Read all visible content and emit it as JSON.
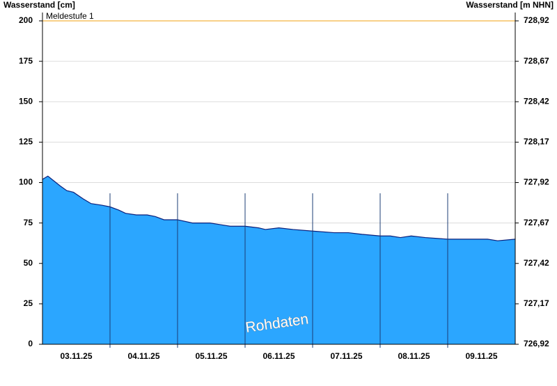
{
  "chart_data": {
    "type": "area",
    "y_label": "Wasserstand [cm]",
    "y2_label": "Wasserstand [m NHN]",
    "watermark": "Rohdaten",
    "thresholds": [
      {
        "label": "Meldestufe 1",
        "value": 200,
        "color": "#f5c060"
      }
    ],
    "xlim": [
      0,
      7
    ],
    "xticks": [
      {
        "value": 0.5,
        "label": "03.11.25"
      },
      {
        "value": 1.5,
        "label": "04.11.25"
      },
      {
        "value": 2.5,
        "label": "05.11.25"
      },
      {
        "value": 3.5,
        "label": "06.11.25"
      },
      {
        "value": 4.5,
        "label": "07.11.25"
      },
      {
        "value": 5.5,
        "label": "08.11.25"
      },
      {
        "value": 6.5,
        "label": "09.11.25"
      }
    ],
    "ylim": [
      0,
      200
    ],
    "yticks": [
      0,
      25,
      50,
      75,
      100,
      125,
      150,
      175,
      200
    ],
    "y2lim": [
      726.92,
      728.92
    ],
    "y2ticks": [
      {
        "value": 726.92,
        "label": "726,92"
      },
      {
        "value": 727.17,
        "label": "727,17"
      },
      {
        "value": 727.42,
        "label": "727,42"
      },
      {
        "value": 727.67,
        "label": "727,67"
      },
      {
        "value": 727.92,
        "label": "727,92"
      },
      {
        "value": 728.17,
        "label": "728,17"
      },
      {
        "value": 728.42,
        "label": "728,42"
      },
      {
        "value": 728.67,
        "label": "728,67"
      },
      {
        "value": 728.92,
        "label": "728,92"
      }
    ],
    "grid": true,
    "series": [
      {
        "color": "#2ba6ff",
        "line_color": "#0a1f7a",
        "x": [
          0,
          0.08,
          0.26,
          0.36,
          0.46,
          0.6,
          0.72,
          0.88,
          1.0,
          1.13,
          1.23,
          1.39,
          1.55,
          1.67,
          1.8,
          2.0,
          2.22,
          2.48,
          2.63,
          2.78,
          3.0,
          3.2,
          3.3,
          3.5,
          3.71,
          4.0,
          4.32,
          4.53,
          4.73,
          5.0,
          5.15,
          5.3,
          5.46,
          5.67,
          6.0,
          6.28,
          6.59,
          6.74,
          7.0
        ],
        "values": [
          102,
          104,
          98,
          95,
          94,
          90,
          87,
          86,
          85,
          83,
          81,
          80,
          80,
          79,
          77,
          77,
          75,
          75,
          74,
          73,
          73,
          72,
          71,
          72,
          71,
          70,
          69,
          69,
          68,
          67,
          67,
          66,
          67,
          66,
          65,
          65,
          65,
          64,
          65
        ]
      }
    ]
  }
}
